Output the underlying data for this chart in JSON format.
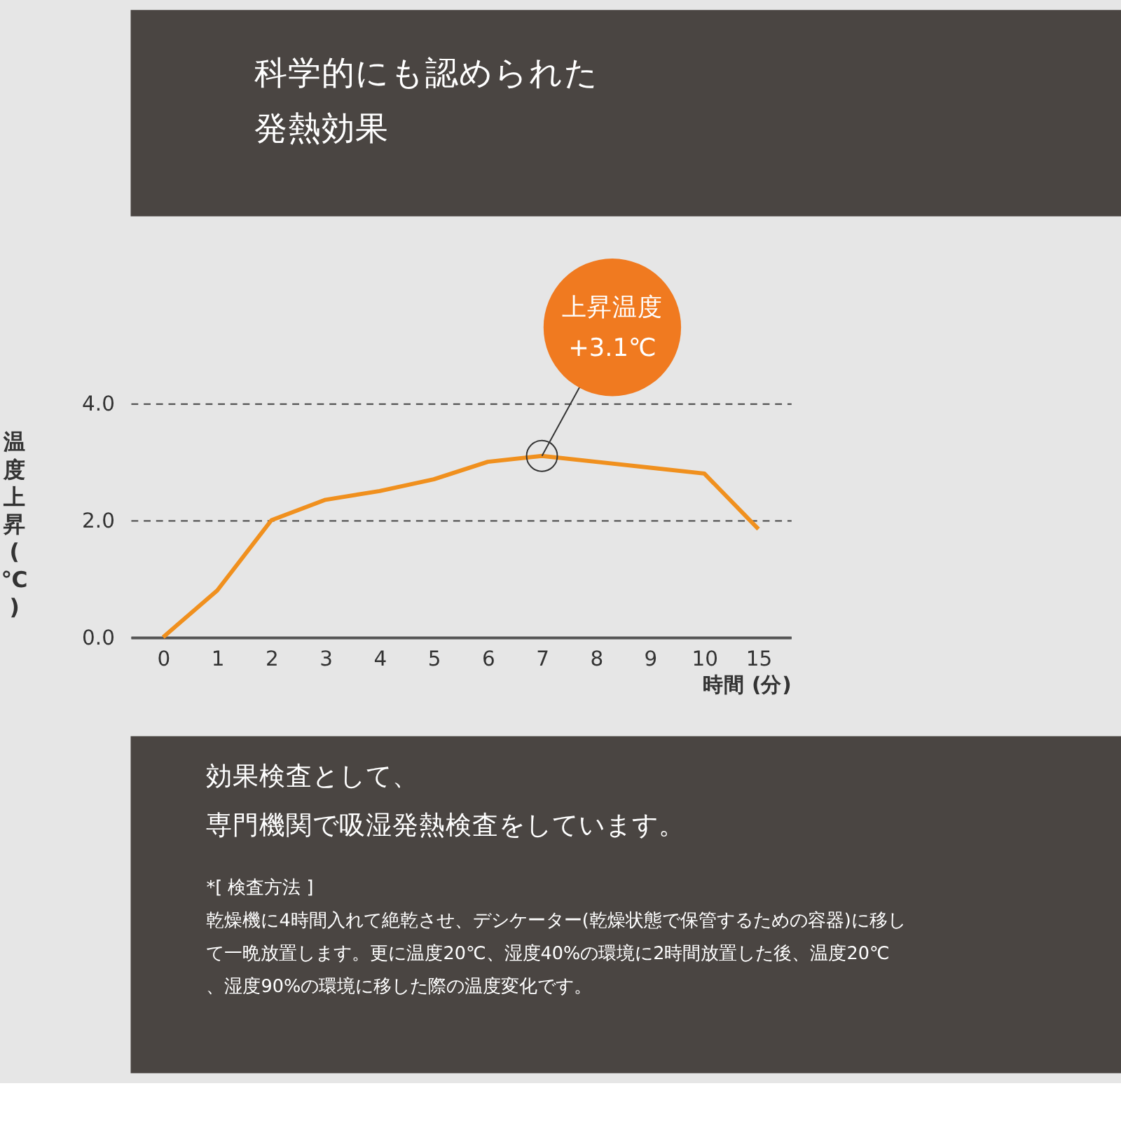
{
  "chart_data": {
    "type": "line",
    "title": "科学的にも認められた発熱効果",
    "xlabel": "時間 (分)",
    "ylabel": "温度上昇 (℃)",
    "categories": [
      "0",
      "1",
      "2",
      "3",
      "4",
      "5",
      "6",
      "7",
      "8",
      "9",
      "10",
      "15"
    ],
    "series": [
      {
        "color": "#f0901e",
        "values": [
          0,
          0.8,
          2.0,
          2.35,
          2.5,
          2.7,
          3.0,
          3.1,
          3.0,
          2.9,
          2.8,
          1.85
        ]
      }
    ],
    "ylim": [
      0,
      4
    ],
    "yticks": [
      {
        "value": 0,
        "label": "0.0"
      },
      {
        "value": 2,
        "label": "2.0"
      },
      {
        "value": 4,
        "label": "4.0"
      }
    ],
    "grid": "y",
    "marker": "none",
    "line_style": "solid",
    "annotations": [
      {
        "text": "上昇温度 +3.1℃",
        "x": "7",
        "y": 3.1
      },
      "効果検査として、",
      "専門機関で吸湿発熱検査をしています。",
      "*[ 検査方法 ]",
      "乾燥機に4時間入れて絶乾させ、デシケーター(乾燥状態で保管するための容器)に移して一晩放置します。更に温度20℃、湿度40%の環境に2時間放置した後、温度20℃、湿度90%の環境に移した際の温度変化です。"
    ]
  }
}
